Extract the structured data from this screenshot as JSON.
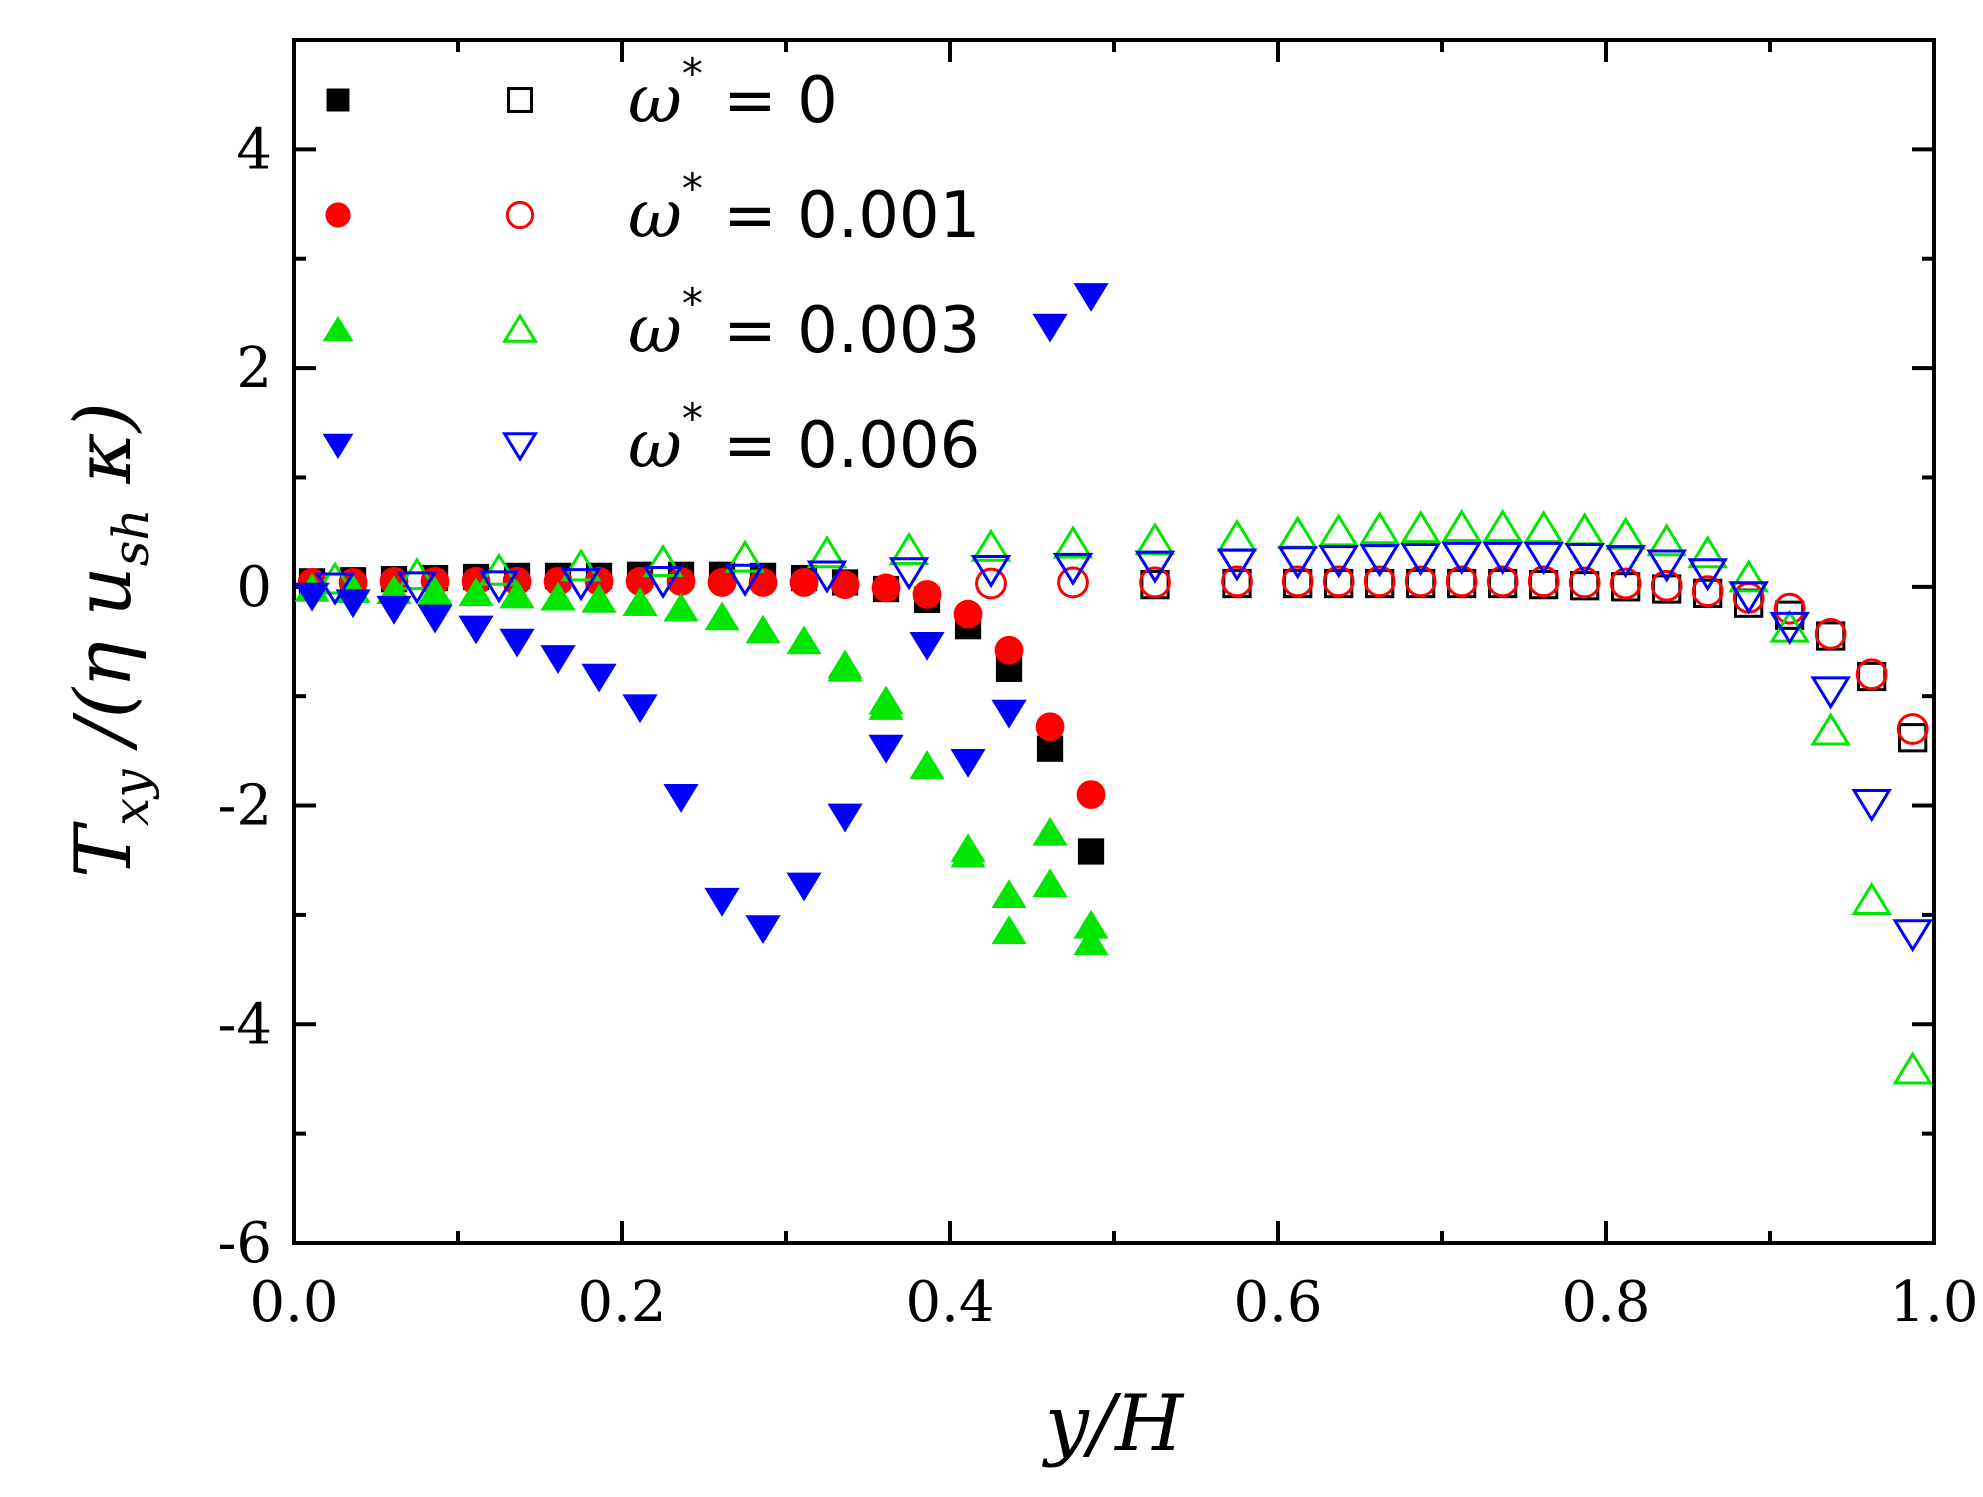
{
  "chart_data": {
    "type": "scatter",
    "xlabel": "y/H",
    "ylabel": "T_xy /(η u_sh κ)",
    "ylabel_parts": {
      "main": "T",
      "sub1": "xy",
      "mid": " /(η u",
      "sub2": "sh",
      "end": " κ)"
    },
    "xlim": [
      0.0,
      1.0
    ],
    "ylim": [
      -6,
      5
    ],
    "x_ticks": [
      0.0,
      0.2,
      0.4,
      0.6,
      0.8,
      1.0
    ],
    "x_tick_labels": [
      "0.0",
      "0.2",
      "0.4",
      "0.6",
      "0.8",
      "1.0"
    ],
    "y_ticks": [
      -6,
      -4,
      -2,
      0,
      2,
      4
    ],
    "y_tick_labels": [
      "-6",
      "-4",
      "-2",
      "0",
      "2",
      "4"
    ],
    "legend_placement": "top-left",
    "legend": [
      {
        "symbol": "ω",
        "star": "*",
        "text": " = 0",
        "color": "#000000",
        "marker": "square"
      },
      {
        "symbol": "ω",
        "star": "*",
        "text": " = 0.001",
        "color": "#ff0000",
        "marker": "circle"
      },
      {
        "symbol": "ω",
        "star": "*",
        "text": " = 0.003",
        "color": "#00e600",
        "marker": "triangle-up"
      },
      {
        "symbol": "ω",
        "star": "*",
        "text": " = 0.006",
        "color": "#0000ff",
        "marker": "triangle-down"
      }
    ],
    "series": [
      {
        "group": 0,
        "filled": true,
        "color": "#000000",
        "marker": "square",
        "x": [
          0.011,
          0.036,
          0.061,
          0.086,
          0.111,
          0.136,
          0.161,
          0.186,
          0.211,
          0.236,
          0.261,
          0.286,
          0.311,
          0.336,
          0.361,
          0.386,
          0.411,
          0.436,
          0.461,
          0.486
        ],
        "y": [
          0.05,
          0.06,
          0.07,
          0.08,
          0.09,
          0.1,
          0.1,
          0.1,
          0.11,
          0.11,
          0.11,
          0.1,
          0.08,
          0.04,
          -0.02,
          -0.12,
          -0.36,
          -0.75,
          -1.48,
          -2.42
        ]
      },
      {
        "group": 0,
        "filled": false,
        "color": "#000000",
        "marker": "square",
        "x": [
          0.525,
          0.575,
          0.612,
          0.637,
          0.662,
          0.687,
          0.712,
          0.737,
          0.762,
          0.787,
          0.812,
          0.837,
          0.862,
          0.887,
          0.912,
          0.937,
          0.962,
          0.987
        ],
        "y": [
          0.02,
          0.03,
          0.03,
          0.03,
          0.03,
          0.03,
          0.03,
          0.03,
          0.02,
          0.01,
          0.0,
          -0.02,
          -0.06,
          -0.15,
          -0.26,
          -0.45,
          -0.82,
          -1.38
        ]
      },
      {
        "group": 1,
        "filled": true,
        "color": "#ff0000",
        "marker": "circle",
        "x": [
          0.011,
          0.036,
          0.061,
          0.086,
          0.111,
          0.136,
          0.161,
          0.186,
          0.211,
          0.236,
          0.261,
          0.286,
          0.311,
          0.336,
          0.361,
          0.386,
          0.411,
          0.436,
          0.461,
          0.486
        ],
        "y": [
          0.04,
          0.04,
          0.05,
          0.05,
          0.05,
          0.05,
          0.05,
          0.05,
          0.05,
          0.05,
          0.04,
          0.04,
          0.04,
          0.02,
          -0.01,
          -0.07,
          -0.25,
          -0.58,
          -1.28,
          -1.9
        ]
      },
      {
        "group": 1,
        "filled": false,
        "color": "#ff0000",
        "marker": "circle",
        "x": [
          0.425,
          0.475,
          0.525,
          0.575,
          0.612,
          0.637,
          0.662,
          0.687,
          0.712,
          0.737,
          0.762,
          0.787,
          0.812,
          0.837,
          0.862,
          0.887,
          0.912,
          0.937,
          0.962,
          0.987
        ],
        "y": [
          0.03,
          0.04,
          0.04,
          0.05,
          0.05,
          0.05,
          0.05,
          0.05,
          0.05,
          0.05,
          0.05,
          0.04,
          0.03,
          0.01,
          -0.04,
          -0.1,
          -0.2,
          -0.43,
          -0.8,
          -1.3
        ]
      },
      {
        "group": 2,
        "filled": true,
        "color": "#00e600",
        "marker": "triangle-up",
        "x": [
          0.011,
          0.036,
          0.061,
          0.086,
          0.111,
          0.136,
          0.161,
          0.186,
          0.211,
          0.236,
          0.261,
          0.286,
          0.311,
          0.336,
          0.361,
          0.386,
          0.411,
          0.436,
          0.461,
          0.486
        ],
        "y": [
          -0.02,
          -0.03,
          -0.04,
          -0.05,
          -0.06,
          -0.08,
          -0.1,
          -0.12,
          -0.15,
          -0.2,
          -0.28,
          -0.4,
          -0.5,
          -0.72,
          -1.1,
          -1.64,
          -2.45,
          -2.82,
          -2.25,
          -3.1
        ]
      },
      {
        "group": 2,
        "filled": true,
        "color": "#00e600",
        "marker": "triangle-up",
        "x": [
          0.336,
          0.361,
          0.411,
          0.436,
          0.461,
          0.486
        ],
        "y": [
          -0.75,
          -1.05,
          -2.4,
          -3.15,
          -2.72,
          -3.25
        ]
      },
      {
        "group": 2,
        "filled": false,
        "color": "#00e600",
        "marker": "triangle-up",
        "x": [
          0.025,
          0.075,
          0.125,
          0.175,
          0.225,
          0.275,
          0.325,
          0.375,
          0.425,
          0.475,
          0.525,
          0.575,
          0.612,
          0.637,
          0.662,
          0.687,
          0.712,
          0.737,
          0.762,
          0.787,
          0.812,
          0.837,
          0.862,
          0.887,
          0.912,
          0.937,
          0.962,
          0.987
        ],
        "y": [
          0.06,
          0.1,
          0.14,
          0.18,
          0.22,
          0.26,
          0.3,
          0.33,
          0.36,
          0.39,
          0.42,
          0.45,
          0.48,
          0.5,
          0.52,
          0.53,
          0.54,
          0.54,
          0.53,
          0.51,
          0.47,
          0.41,
          0.3,
          0.08,
          -0.38,
          -1.32,
          -2.87,
          -4.42
        ]
      },
      {
        "group": 3,
        "filled": true,
        "color": "#0000ff",
        "marker": "triangle-down",
        "x": [
          0.011,
          0.036,
          0.061,
          0.086,
          0.111,
          0.136,
          0.161,
          0.186,
          0.211,
          0.236,
          0.261,
          0.286,
          0.311,
          0.336,
          0.361,
          0.386,
          0.411,
          0.436,
          0.461,
          0.486
        ],
        "y": [
          -0.08,
          -0.14,
          -0.2,
          -0.28,
          -0.38,
          -0.5,
          -0.65,
          -0.82,
          -1.1,
          -1.92,
          -2.87,
          -3.12,
          -2.73,
          -2.1,
          -1.47,
          -0.53,
          -1.6,
          -1.15,
          2.38,
          2.66
        ]
      },
      {
        "group": 3,
        "filled": false,
        "color": "#0000ff",
        "marker": "triangle-down",
        "x": [
          0.025,
          0.075,
          0.125,
          0.175,
          0.225,
          0.275,
          0.325,
          0.375,
          0.425,
          0.475,
          0.525,
          0.575,
          0.612,
          0.637,
          0.662,
          0.687,
          0.712,
          0.737,
          0.762,
          0.787,
          0.812,
          0.837,
          0.862,
          0.887,
          0.912,
          0.937,
          0.962,
          0.987
        ],
        "y": [
          0.0,
          0.01,
          0.02,
          0.04,
          0.06,
          0.08,
          0.11,
          0.14,
          0.16,
          0.18,
          0.2,
          0.22,
          0.24,
          0.25,
          0.26,
          0.27,
          0.28,
          0.28,
          0.28,
          0.27,
          0.25,
          0.21,
          0.13,
          -0.08,
          -0.36,
          -0.95,
          -1.98,
          -3.17
        ]
      }
    ]
  }
}
